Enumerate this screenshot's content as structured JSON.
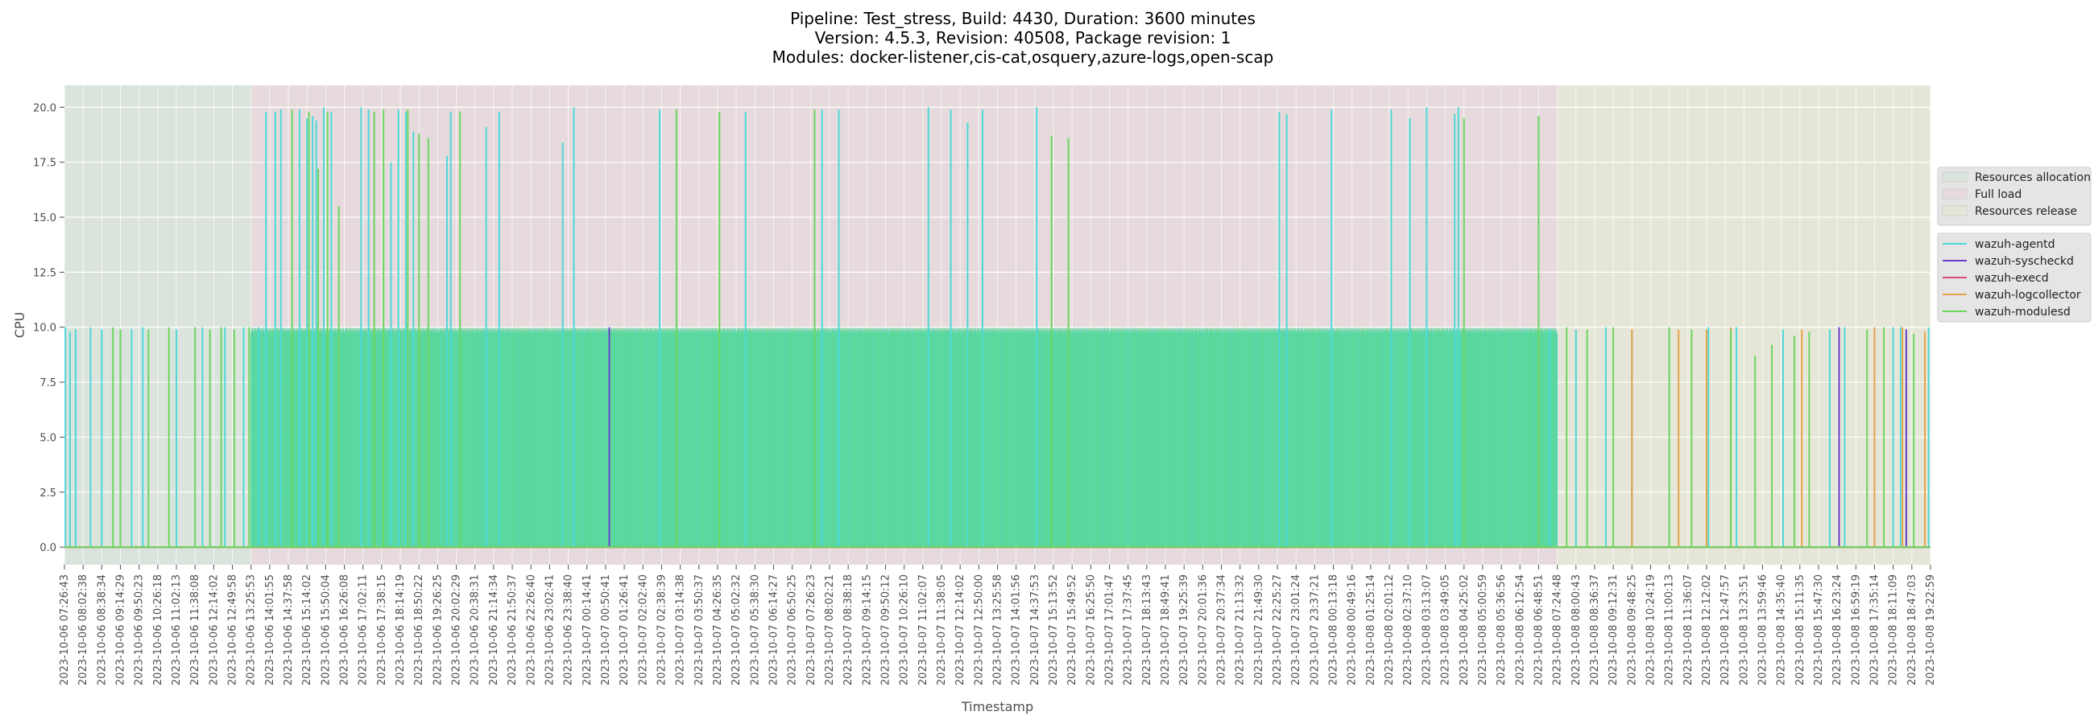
{
  "chart_data": {
    "type": "line",
    "title_lines": [
      "Pipeline: Test_stress, Build: 4430, Duration: 3600 minutes",
      "Version: 4.5.3, Revision: 40508, Package revision: 1",
      "Modules: docker-listener,cis-cat,osquery,azure-logs,open-scap"
    ],
    "xlabel": "Timestamp",
    "ylabel": "CPU",
    "ylim": [
      -0.8,
      21.0
    ],
    "y_ticks": [
      0.0,
      2.5,
      5.0,
      7.5,
      10.0,
      12.5,
      15.0,
      17.5,
      20.0
    ],
    "y_tick_labels": [
      "0.0",
      "2.5",
      "5.0",
      "7.5",
      "10.0",
      "12.5",
      "15.0",
      "17.5",
      "20.0"
    ],
    "x_tick_labels": [
      "2023-10-06 07:26:43",
      "2023-10-06 08:02:38",
      "2023-10-06 08:38:34",
      "2023-10-06 09:14:29",
      "2023-10-06 09:50:23",
      "2023-10-06 10:26:18",
      "2023-10-06 11:02:13",
      "2023-10-06 11:38:08",
      "2023-10-06 12:14:02",
      "2023-10-06 12:49:58",
      "2023-10-06 13:25:53",
      "2023-10-06 14:01:55",
      "2023-10-06 14:37:58",
      "2023-10-06 15:14:02",
      "2023-10-06 15:50:04",
      "2023-10-06 16:26:08",
      "2023-10-06 17:02:11",
      "2023-10-06 17:38:15",
      "2023-10-06 18:14:19",
      "2023-10-06 18:50:22",
      "2023-10-06 19:26:25",
      "2023-10-06 20:02:29",
      "2023-10-06 20:38:31",
      "2023-10-06 21:14:34",
      "2023-10-06 21:50:37",
      "2023-10-06 22:26:40",
      "2023-10-06 23:02:41",
      "2023-10-06 23:38:40",
      "2023-10-07 00:14:41",
      "2023-10-07 00:50:41",
      "2023-10-07 01:26:41",
      "2023-10-07 02:02:40",
      "2023-10-07 02:38:39",
      "2023-10-07 03:14:38",
      "2023-10-07 03:50:37",
      "2023-10-07 04:26:35",
      "2023-10-07 05:02:32",
      "2023-10-07 05:38:30",
      "2023-10-07 06:14:27",
      "2023-10-07 06:50:25",
      "2023-10-07 07:26:23",
      "2023-10-07 08:02:21",
      "2023-10-07 08:38:18",
      "2023-10-07 09:14:15",
      "2023-10-07 09:50:12",
      "2023-10-07 10:26:10",
      "2023-10-07 11:02:07",
      "2023-10-07 11:38:05",
      "2023-10-07 12:14:02",
      "2023-10-07 12:50:00",
      "2023-10-07 13:25:58",
      "2023-10-07 14:01:56",
      "2023-10-07 14:37:53",
      "2023-10-07 15:13:52",
      "2023-10-07 15:49:52",
      "2023-10-07 16:25:50",
      "2023-10-07 17:01:47",
      "2023-10-07 17:37:45",
      "2023-10-07 18:13:43",
      "2023-10-07 18:49:41",
      "2023-10-07 19:25:39",
      "2023-10-07 20:01:36",
      "2023-10-07 20:37:34",
      "2023-10-07 21:13:32",
      "2023-10-07 21:49:30",
      "2023-10-07 22:25:27",
      "2023-10-07 23:01:24",
      "2023-10-07 23:37:21",
      "2023-10-08 00:13:18",
      "2023-10-08 00:49:16",
      "2023-10-08 01:25:14",
      "2023-10-08 02:01:12",
      "2023-10-08 02:37:10",
      "2023-10-08 03:13:07",
      "2023-10-08 03:49:05",
      "2023-10-08 04:25:02",
      "2023-10-08 05:00:59",
      "2023-10-08 05:36:56",
      "2023-10-08 06:12:54",
      "2023-10-08 06:48:51",
      "2023-10-08 07:24:48",
      "2023-10-08 08:00:43",
      "2023-10-08 08:36:37",
      "2023-10-08 09:12:31",
      "2023-10-08 09:48:25",
      "2023-10-08 10:24:19",
      "2023-10-08 11:00:13",
      "2023-10-08 11:36:07",
      "2023-10-08 12:12:02",
      "2023-10-08 12:47:57",
      "2023-10-08 13:23:51",
      "2023-10-08 13:59:46",
      "2023-10-08 14:35:40",
      "2023-10-08 15:11:35",
      "2023-10-08 15:47:30",
      "2023-10-08 16:23:24",
      "2023-10-08 16:59:19",
      "2023-10-08 17:35:14",
      "2023-10-08 18:11:09",
      "2023-10-08 18:47:03",
      "2023-10-08 19:22:59"
    ],
    "phases": [
      {
        "name": "Resources allocation",
        "start_tick": 0,
        "end_tick": 10,
        "color": "#dbe3dd"
      },
      {
        "name": "Full load",
        "start_tick": 10,
        "end_tick": 80,
        "color": "#e6dadc"
      },
      {
        "name": "Resources release",
        "start_tick": 80,
        "end_tick": 100,
        "color": "#e6e6d8"
      }
    ],
    "series": [
      {
        "name": "wazuh-agentd",
        "color": "#4dd9d9",
        "baseline": 0.0,
        "spikes": [
          [
            0.05,
            10.0
          ],
          [
            0.3,
            9.8
          ],
          [
            0.6,
            9.9
          ],
          [
            1.4,
            10.0
          ],
          [
            2.0,
            9.9
          ],
          [
            3.6,
            9.9
          ],
          [
            4.2,
            10.0
          ],
          [
            6.0,
            9.9
          ],
          [
            7.4,
            10.0
          ],
          [
            8.6,
            10.0
          ],
          [
            9.6,
            10.0
          ],
          [
            10.4,
            10.0
          ],
          [
            10.8,
            19.8
          ],
          [
            11.3,
            19.8
          ],
          [
            11.6,
            19.9
          ],
          [
            12.6,
            19.9
          ],
          [
            13.0,
            19.5
          ],
          [
            13.3,
            19.6
          ],
          [
            13.5,
            19.4
          ],
          [
            13.9,
            20.0
          ],
          [
            14.3,
            19.8
          ],
          [
            15.9,
            20.0
          ],
          [
            16.3,
            19.9
          ],
          [
            17.5,
            17.5
          ],
          [
            17.9,
            19.9
          ],
          [
            18.3,
            19.8
          ],
          [
            18.7,
            18.9
          ],
          [
            20.5,
            17.8
          ],
          [
            20.7,
            19.8
          ],
          [
            22.6,
            19.1
          ],
          [
            23.3,
            19.8
          ],
          [
            26.7,
            18.4
          ],
          [
            27.3,
            20.0
          ],
          [
            31.9,
            19.9
          ],
          [
            36.5,
            19.8
          ],
          [
            40.6,
            19.9
          ],
          [
            41.5,
            19.9
          ],
          [
            46.3,
            20.0
          ],
          [
            47.5,
            19.9
          ],
          [
            48.4,
            19.3
          ],
          [
            49.2,
            19.9
          ],
          [
            52.1,
            20.0
          ],
          [
            65.1,
            19.8
          ],
          [
            65.5,
            19.7
          ],
          [
            67.9,
            19.9
          ],
          [
            71.1,
            19.9
          ],
          [
            72.1,
            19.5
          ],
          [
            73.0,
            20.0
          ],
          [
            74.5,
            19.7
          ],
          [
            74.7,
            20.0
          ],
          [
            79.6,
            9.9
          ],
          [
            81.0,
            9.9
          ],
          [
            82.6,
            10.0
          ],
          [
            84.0,
            9.8
          ],
          [
            88.1,
            10.0
          ],
          [
            89.6,
            10.0
          ],
          [
            92.1,
            9.9
          ],
          [
            94.6,
            9.9
          ],
          [
            95.4,
            10.0
          ],
          [
            98.0,
            10.0
          ],
          [
            98.4,
            10.0
          ],
          [
            99.9,
            10.0
          ]
        ]
      },
      {
        "name": "wazuh-syscheckd",
        "color": "#6a3fc8",
        "baseline": 0.0,
        "spikes": [
          [
            29.2,
            10.0
          ],
          [
            95.1,
            10.0
          ],
          [
            98.7,
            9.9
          ]
        ]
      },
      {
        "name": "wazuh-execd",
        "color": "#d64a7e",
        "baseline": 0.0,
        "spikes": []
      },
      {
        "name": "wazuh-logcollector",
        "color": "#e8a24a",
        "baseline": 0.0,
        "spikes": [
          [
            84.0,
            9.9
          ],
          [
            86.5,
            9.9
          ],
          [
            88.0,
            9.9
          ],
          [
            89.3,
            10.0
          ],
          [
            93.1,
            9.9
          ],
          [
            97.0,
            10.0
          ],
          [
            98.5,
            10.0
          ],
          [
            99.7,
            9.8
          ]
        ]
      },
      {
        "name": "wazuh-modulesd",
        "color": "#6cd65e",
        "baseline": 0.0,
        "spikes": [
          [
            2.6,
            10.0
          ],
          [
            3.0,
            9.9
          ],
          [
            4.5,
            9.9
          ],
          [
            5.6,
            10.0
          ],
          [
            7.0,
            10.0
          ],
          [
            7.8,
            9.9
          ],
          [
            8.4,
            10.0
          ],
          [
            9.1,
            9.9
          ],
          [
            9.9,
            10.0
          ],
          [
            12.2,
            19.9
          ],
          [
            13.1,
            19.8
          ],
          [
            13.6,
            17.2
          ],
          [
            14.1,
            19.8
          ],
          [
            14.7,
            15.5
          ],
          [
            16.6,
            19.8
          ],
          [
            17.1,
            19.9
          ],
          [
            18.4,
            19.9
          ],
          [
            19.0,
            18.8
          ],
          [
            19.5,
            18.6
          ],
          [
            21.2,
            19.8
          ],
          [
            32.8,
            19.9
          ],
          [
            35.1,
            19.8
          ],
          [
            40.2,
            19.9
          ],
          [
            52.9,
            18.7
          ],
          [
            53.8,
            18.6
          ],
          [
            75.0,
            19.5
          ],
          [
            79.0,
            19.6
          ],
          [
            80.5,
            10.0
          ],
          [
            81.6,
            9.9
          ],
          [
            83.0,
            10.0
          ],
          [
            86.0,
            10.0
          ],
          [
            87.2,
            9.9
          ],
          [
            89.3,
            9.9
          ],
          [
            90.6,
            8.7
          ],
          [
            91.5,
            9.2
          ],
          [
            92.7,
            9.6
          ],
          [
            93.5,
            9.8
          ],
          [
            96.6,
            9.9
          ],
          [
            97.5,
            10.0
          ],
          [
            99.1,
            9.7
          ]
        ]
      }
    ],
    "legend_placement": "right",
    "grid": true
  }
}
